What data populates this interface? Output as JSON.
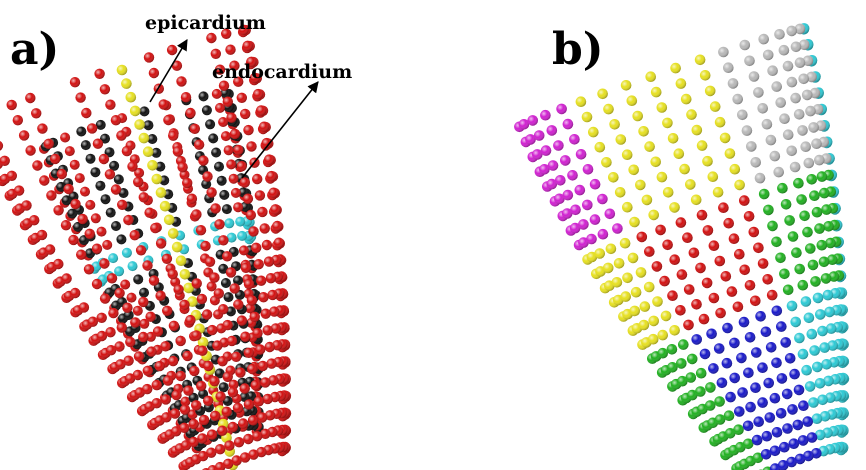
{
  "panels": [
    {
      "label": "a)"
    },
    {
      "label": "b)"
    }
  ],
  "annotations": [
    {
      "text": "epicardium"
    },
    {
      "text": "endocardium"
    }
  ],
  "colors": {
    "epicardium": "#d21010",
    "endocardium": "#111111",
    "stripe": "#e6e020",
    "ring": "#2cc9d4",
    "segments": [
      "#e6e020",
      "#b8b8b8",
      "#2cc9d4",
      "#1818c8",
      "#20b020",
      "#d21010",
      "#d020d0"
    ]
  }
}
